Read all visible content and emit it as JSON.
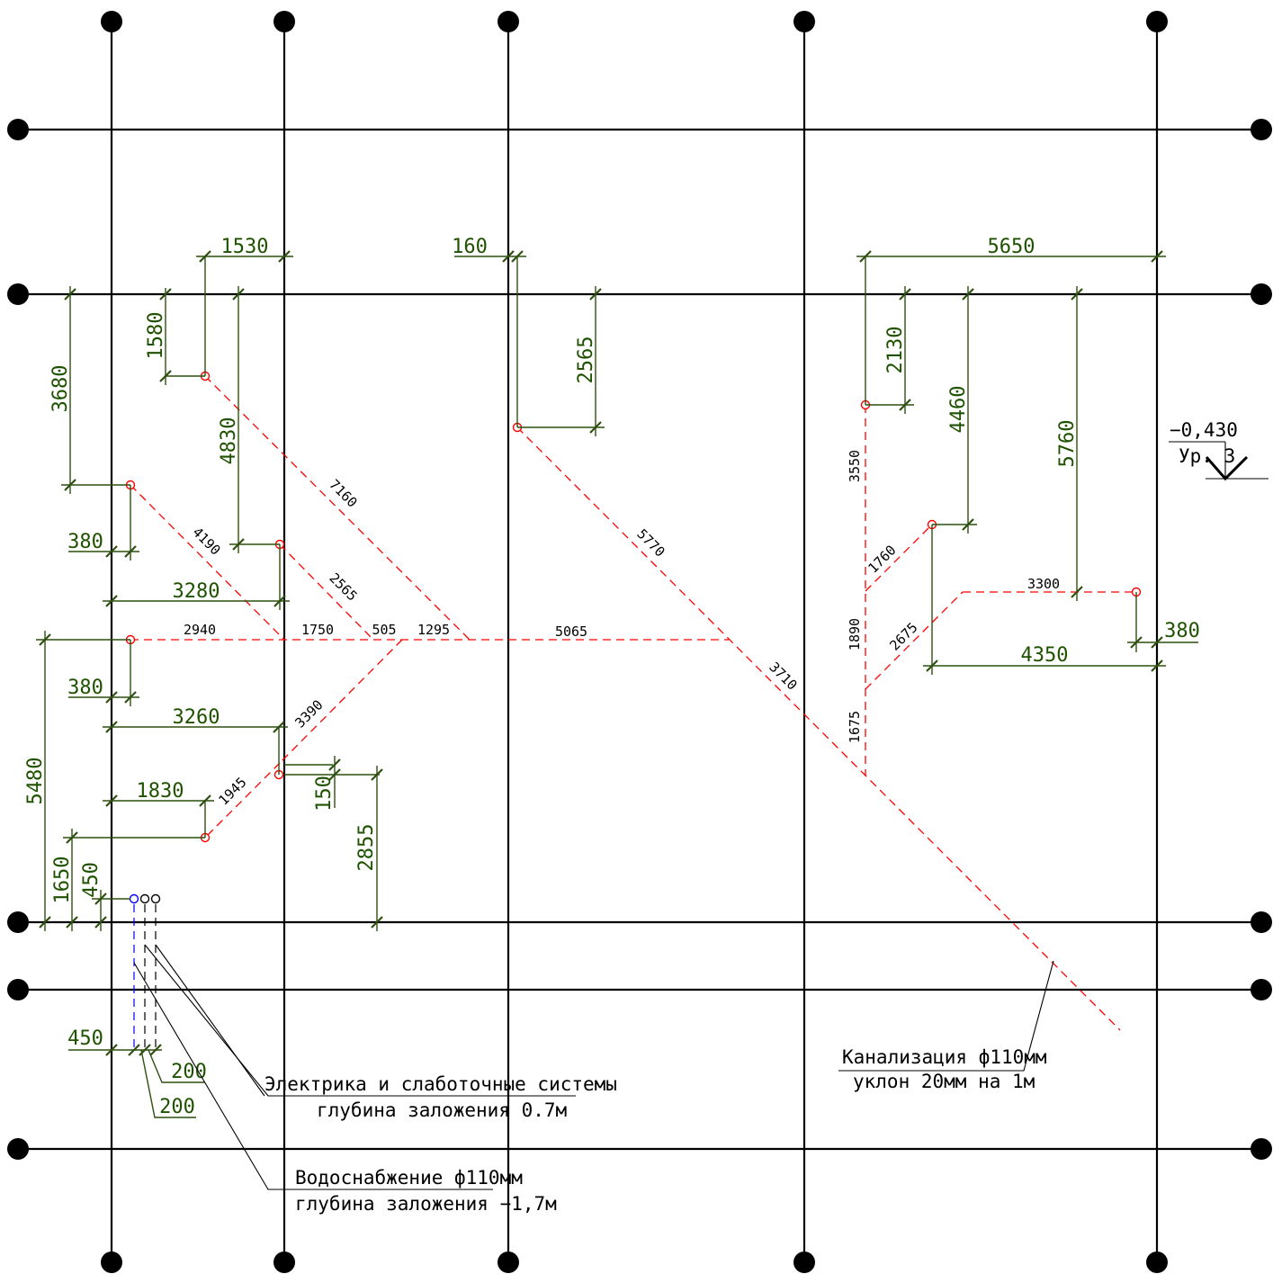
{
  "dims": [
    "1530",
    "160",
    "5650",
    "1580",
    "3680",
    "2565",
    "2130",
    "4460",
    "5760",
    "4830",
    "380",
    "3280",
    "380",
    "3260",
    "1830",
    "150",
    "2855",
    "5480",
    "1650",
    "450",
    "450",
    "200",
    "200",
    "380",
    "4350"
  ],
  "pipe_labels": [
    "7160",
    "4190",
    "2565",
    "5770",
    "3550",
    "1760",
    "3300",
    "1890",
    "2675",
    "3710",
    "1675",
    "2940",
    "1750",
    "505",
    "1295",
    "5065",
    "3390",
    "1945"
  ],
  "level": {
    "value": "−0,430",
    "name": "Ур. 3"
  },
  "notes": {
    "electric_1": "Электрика и слаботочные системы",
    "electric_2": "глубина заложения 0.7м",
    "water_1": "Водоснабжение ф110мм",
    "water_2": "глубина заложения −1,7м",
    "sewer_1": "Канализация ф110мм",
    "sewer_2": "уклон 20мм на 1м"
  }
}
